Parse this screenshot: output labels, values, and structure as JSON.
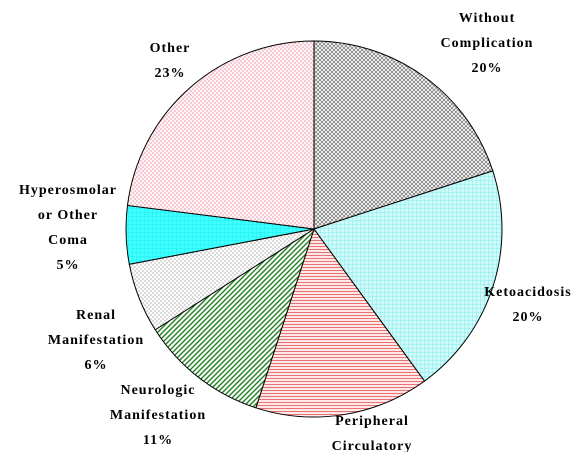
{
  "chart_data": {
    "type": "pie",
    "categories": [
      "Without Complication",
      "Ketoacidosis",
      "Peripheral Circulatory",
      "Neurologic Manifestation",
      "Renal Manifestation",
      "Hyperosmolar or Other Coma",
      "Other"
    ],
    "values": [
      20,
      20,
      15,
      11,
      6,
      5,
      23
    ],
    "value_labels": [
      "20%",
      "20%",
      null,
      "11%",
      "6%",
      "5%",
      "23%"
    ],
    "colors": [
      "#808080",
      "#40e0e0",
      "#e04040",
      "#208020",
      "#808080",
      "#00e0e0",
      "#e06080"
    ]
  }
}
